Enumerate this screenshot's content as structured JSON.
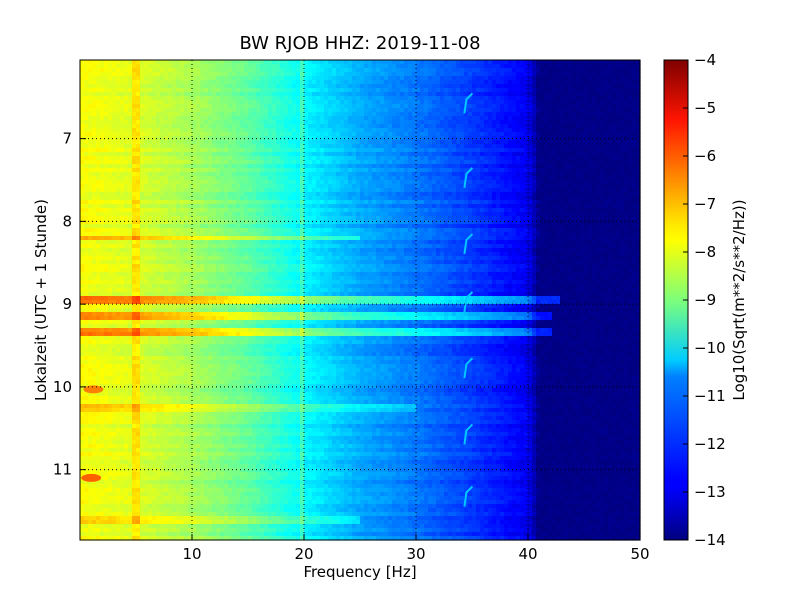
{
  "chart_data": {
    "type": "heatmap",
    "title": "BW RJOB HHZ: 2019-11-08",
    "xlabel": "Frequency [Hz]",
    "ylabel": "Lokalzeit (UTC + 1 Stunde)",
    "xlim": [
      0,
      50
    ],
    "ylim": [
      6.05,
      11.85
    ],
    "y_inverted": true,
    "x_ticks": [
      10,
      20,
      30,
      40,
      50
    ],
    "y_ticks": [
      7,
      8,
      9,
      10,
      11
    ],
    "grid": true,
    "grid_style": "dotted",
    "colormap": "jet",
    "colorbar": {
      "label": "Log10(Sqrt(m**2/s**2/Hz))",
      "range": [
        -14,
        -4
      ],
      "ticks": [
        -4,
        -5,
        -6,
        -7,
        -8,
        -9,
        -10,
        -11,
        -12,
        -13,
        -14
      ]
    },
    "base_level_by_frequency": {
      "frequency_hz": [
        0,
        5,
        10,
        15,
        20,
        25,
        30,
        35,
        40,
        41,
        50
      ],
      "log10_value": [
        -7.8,
        -8.1,
        -8.6,
        -9.3,
        -10.3,
        -11.1,
        -11.6,
        -12.2,
        -12.9,
        -14,
        -14
      ]
    },
    "horizontal_bands": [
      {
        "time": 8.2,
        "fmax": 25,
        "boost": 0.8
      },
      {
        "time": 8.95,
        "fmax": 43,
        "boost": 1.6
      },
      {
        "time": 9.15,
        "fmax": 42,
        "boost": 1.3
      },
      {
        "time": 9.35,
        "fmax": 42,
        "boost": 1.5
      },
      {
        "time": 10.25,
        "fmax": 30,
        "boost": 0.6
      },
      {
        "time": 11.6,
        "fmax": 25,
        "boost": 0.7
      }
    ],
    "vertical_lines_hz": [
      5.0,
      19.8
    ],
    "hotspots": [
      {
        "time": 10.03,
        "frequency_hz": 1.2,
        "log10_value": -6.5
      },
      {
        "time": 11.1,
        "frequency_hz": 1.0,
        "log10_value": -6.2
      }
    ],
    "hook_features": {
      "frequency_hz": 34.5,
      "times": [
        6.55,
        7.45,
        8.25,
        8.95,
        9.75,
        10.55,
        11.3
      ],
      "log10_value": -10.8
    }
  }
}
